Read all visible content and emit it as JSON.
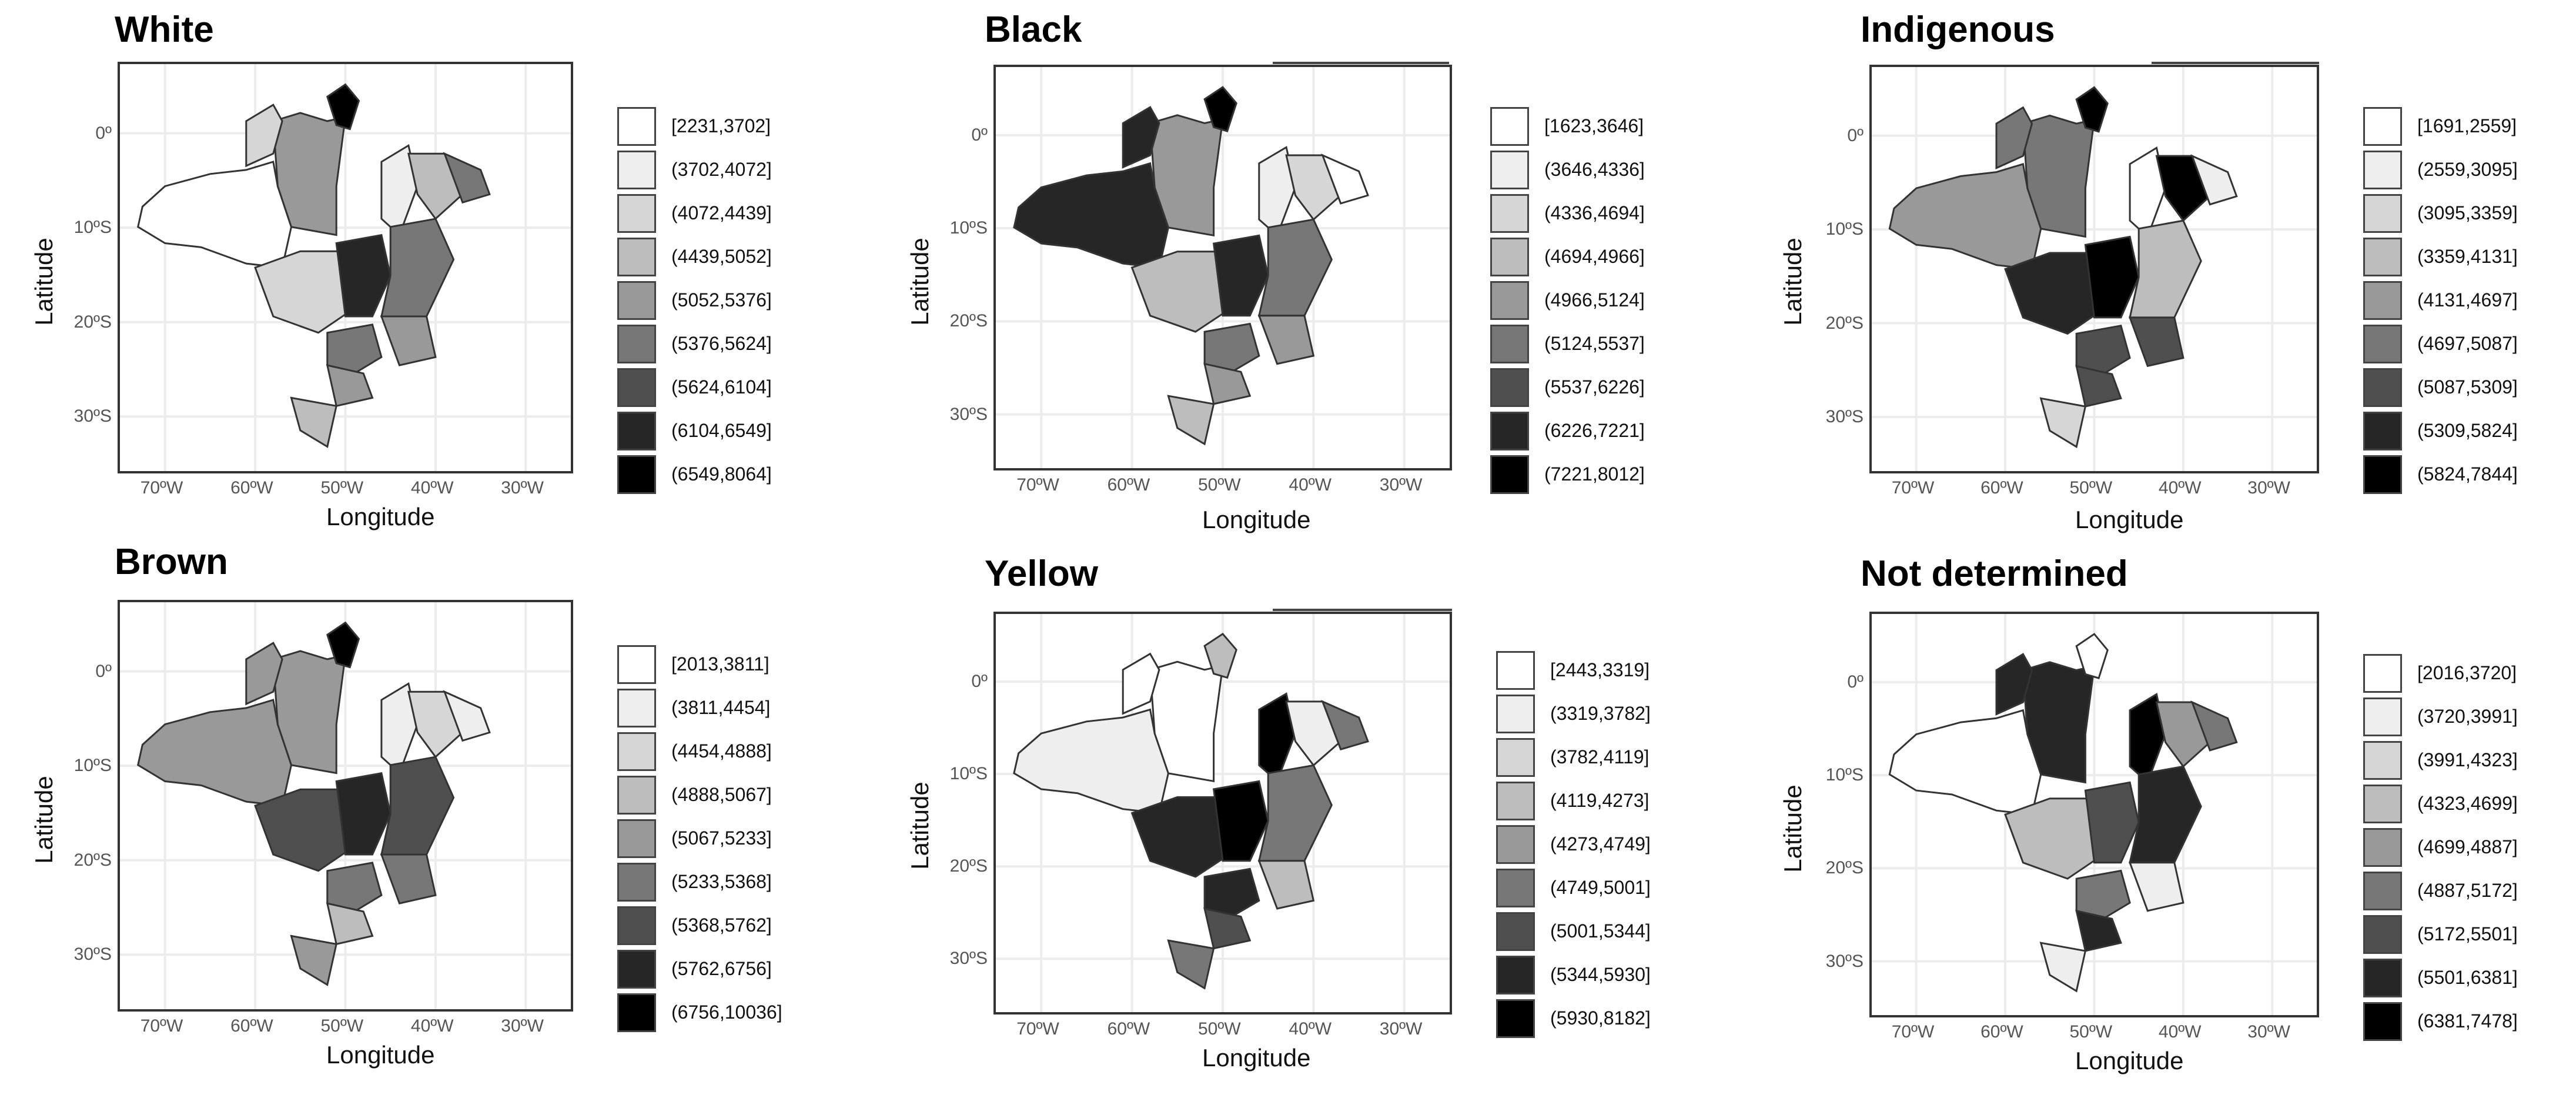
{
  "panels": [
    {
      "title": "White",
      "xlabel": "Longitude",
      "ylabel": "Latitude",
      "xticks": [
        "70ºW",
        "60ºW",
        "50ºW",
        "40ºW",
        "30ºW"
      ],
      "yticks": [
        "0º",
        "10ºS",
        "20ºS",
        "30ºS"
      ],
      "legend": [
        "[2231,3702]",
        "(3702,4072]",
        "(4072,4439]",
        "(4439,5052]",
        "(5052,5376]",
        "(5376,5624]",
        "(5624,6104]",
        "(6104,6549]",
        "(6549,8064]"
      ],
      "regions": {
        "north_west": 0,
        "north_east": 2,
        "north_center": 4,
        "north_tip": 8,
        "northeast_a": 1,
        "northeast_b": 3,
        "northeast_c": 5,
        "center_west": 2,
        "center": 7,
        "southeast_a": 5,
        "southeast_b": 4,
        "south_a": 5,
        "south_b": 4,
        "south_c": 3
      }
    },
    {
      "title": "Black",
      "xlabel": "Longitude",
      "ylabel": "Latitude",
      "xticks": [
        "70ºW",
        "60ºW",
        "50ºW",
        "40ºW",
        "30ºW"
      ],
      "yticks": [
        "0º",
        "10ºS",
        "20ºS",
        "30ºS"
      ],
      "legend": [
        "[1623,3646]",
        "(3646,4336]",
        "(4336,4694]",
        "(4694,4966]",
        "(4966,5124]",
        "(5124,5537]",
        "(5537,6226]",
        "(6226,7221]",
        "(7221,8012]"
      ],
      "regions": {
        "north_west": 7,
        "north_east": 7,
        "north_center": 4,
        "north_tip": 8,
        "northeast_a": 1,
        "northeast_b": 2,
        "northeast_c": 0,
        "center_west": 3,
        "center": 7,
        "southeast_a": 5,
        "southeast_b": 4,
        "south_a": 5,
        "south_b": 4,
        "south_c": 3
      }
    },
    {
      "title": "Indigenous",
      "xlabel": "Longitude",
      "ylabel": "Latitude",
      "xticks": [
        "70ºW",
        "60ºW",
        "50ºW",
        "40ºW",
        "30ºW"
      ],
      "yticks": [
        "0º",
        "10ºS",
        "20ºS",
        "30ºS"
      ],
      "legend": [
        "[1691,2559]",
        "(2559,3095]",
        "(3095,3359]",
        "(3359,4131]",
        "(4131,4697]",
        "(4697,5087]",
        "(5087,5309]",
        "(5309,5824]",
        "(5824,7844]"
      ],
      "regions": {
        "north_west": 4,
        "north_east": 5,
        "north_center": 5,
        "north_tip": 8,
        "northeast_a": 0,
        "northeast_b": 8,
        "northeast_c": 1,
        "center_west": 7,
        "center": 8,
        "southeast_a": 3,
        "southeast_b": 6,
        "south_a": 6,
        "south_b": 6,
        "south_c": 2
      }
    },
    {
      "title": "Brown",
      "xlabel": "Longitude",
      "ylabel": "Latitude",
      "xticks": [
        "70ºW",
        "60ºW",
        "50ºW",
        "40ºW",
        "30ºW"
      ],
      "yticks": [
        "0º",
        "10ºS",
        "20ºS",
        "30ºS"
      ],
      "legend": [
        "[2013,3811]",
        "(3811,4454]",
        "(4454,4888]",
        "(4888,5067]",
        "(5067,5233]",
        "(5233,5368]",
        "(5368,5762]",
        "(5762,6756]",
        "(6756,10036]"
      ],
      "regions": {
        "north_west": 4,
        "north_east": 4,
        "north_center": 4,
        "north_tip": 8,
        "northeast_a": 1,
        "northeast_b": 2,
        "northeast_c": 1,
        "center_west": 6,
        "center": 7,
        "southeast_a": 6,
        "southeast_b": 5,
        "south_a": 5,
        "south_b": 3,
        "south_c": 4
      }
    },
    {
      "title": "Yellow",
      "xlabel": "Longitude",
      "ylabel": "Latitude",
      "xticks": [
        "70ºW",
        "60ºW",
        "50ºW",
        "40ºW",
        "30ºW"
      ],
      "yticks": [
        "0º",
        "10ºS",
        "20ºS",
        "30ºS"
      ],
      "legend": [
        "[2443,3319]",
        "(3319,3782]",
        "(3782,4119]",
        "(4119,4273]",
        "(4273,4749]",
        "(4749,5001]",
        "(5001,5344]",
        "(5344,5930]",
        "(5930,8182]"
      ],
      "regions": {
        "north_west": 1,
        "north_east": 0,
        "north_center": 0,
        "north_tip": 3,
        "northeast_a": 8,
        "northeast_b": 1,
        "northeast_c": 5,
        "center_west": 7,
        "center": 8,
        "southeast_a": 5,
        "southeast_b": 3,
        "south_a": 7,
        "south_b": 6,
        "south_c": 5
      }
    },
    {
      "title": "Not determined",
      "xlabel": "Longitude",
      "ylabel": "Latitude",
      "xticks": [
        "70ºW",
        "60ºW",
        "50ºW",
        "40ºW",
        "30ºW"
      ],
      "yticks": [
        "0º",
        "10ºS",
        "20ºS",
        "30ºS"
      ],
      "legend": [
        "[2016,3720]",
        "(3720,3991]",
        "(3991,4323]",
        "(4323,4699]",
        "(4699,4887]",
        "(4887,5172]",
        "(5172,5501]",
        "(5501,6381]",
        "(6381,7478]"
      ],
      "regions": {
        "north_west": 0,
        "north_east": 7,
        "north_center": 7,
        "north_tip": 0,
        "northeast_a": 8,
        "northeast_b": 4,
        "northeast_c": 5,
        "center_west": 3,
        "center": 6,
        "southeast_a": 7,
        "southeast_b": 1,
        "south_a": 5,
        "south_b": 7,
        "south_c": 1
      }
    }
  ],
  "colors": {
    "scale": [
      "#ffffff",
      "#eeeeee",
      "#d6d6d6",
      "#bdbdbd",
      "#999999",
      "#777777",
      "#4f4f4f",
      "#262626",
      "#000000"
    ],
    "border": "#333333",
    "grid": "#ececec"
  }
}
